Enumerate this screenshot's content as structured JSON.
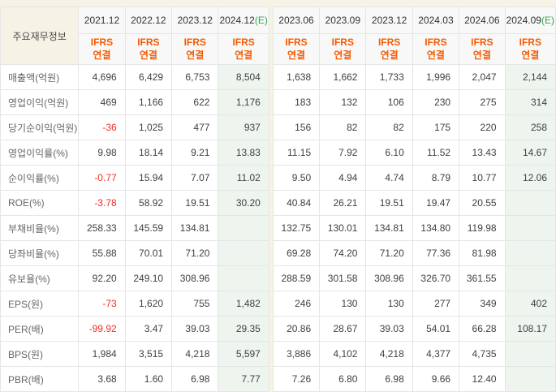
{
  "table": {
    "title": "주요재무정보",
    "ifrs_label": "IFRS",
    "consolidated_label": "연결",
    "estimate_suffix": "(E)",
    "annual_columns": [
      {
        "label": "2021.12",
        "estimate": false
      },
      {
        "label": "2022.12",
        "estimate": false
      },
      {
        "label": "2023.12",
        "estimate": false
      },
      {
        "label": "2024.12",
        "estimate": true
      }
    ],
    "quarterly_columns": [
      {
        "label": "2023.06",
        "estimate": false
      },
      {
        "label": "2023.09",
        "estimate": false
      },
      {
        "label": "2023.12",
        "estimate": false
      },
      {
        "label": "2024.03",
        "estimate": false
      },
      {
        "label": "2024.06",
        "estimate": false
      },
      {
        "label": "2024.09",
        "estimate": true
      }
    ],
    "rows": [
      {
        "label": "매출액(억원)",
        "group_start": false,
        "annual": [
          "4,696",
          "6,429",
          "6,753",
          "8,504"
        ],
        "quarterly": [
          "1,638",
          "1,662",
          "1,733",
          "1,996",
          "2,047",
          "2,144"
        ]
      },
      {
        "label": "영업이익(억원)",
        "group_start": false,
        "annual": [
          "469",
          "1,166",
          "622",
          "1,176"
        ],
        "quarterly": [
          "183",
          "132",
          "106",
          "230",
          "275",
          "314"
        ]
      },
      {
        "label": "당기순이익(억원)",
        "group_start": false,
        "annual": [
          "-36",
          "1,025",
          "477",
          "937"
        ],
        "quarterly": [
          "156",
          "82",
          "82",
          "175",
          "220",
          "258"
        ]
      },
      {
        "label": "영업이익률(%)",
        "group_start": true,
        "annual": [
          "9.98",
          "18.14",
          "9.21",
          "13.83"
        ],
        "quarterly": [
          "11.15",
          "7.92",
          "6.10",
          "11.52",
          "13.43",
          "14.67"
        ]
      },
      {
        "label": "순이익률(%)",
        "group_start": false,
        "annual": [
          "-0.77",
          "15.94",
          "7.07",
          "11.02"
        ],
        "quarterly": [
          "9.50",
          "4.94",
          "4.74",
          "8.79",
          "10.77",
          "12.06"
        ]
      },
      {
        "label": "ROE(%)",
        "group_start": false,
        "annual": [
          "-3.78",
          "58.92",
          "19.51",
          "30.20"
        ],
        "quarterly": [
          "40.84",
          "26.21",
          "19.51",
          "19.47",
          "20.55",
          ""
        ]
      },
      {
        "label": "부채비율(%)",
        "group_start": true,
        "annual": [
          "258.33",
          "145.59",
          "134.81",
          ""
        ],
        "quarterly": [
          "132.75",
          "130.01",
          "134.81",
          "134.80",
          "119.98",
          ""
        ]
      },
      {
        "label": "당좌비율(%)",
        "group_start": false,
        "annual": [
          "55.88",
          "70.01",
          "71.20",
          ""
        ],
        "quarterly": [
          "69.28",
          "74.20",
          "71.20",
          "77.36",
          "81.98",
          ""
        ]
      },
      {
        "label": "유보율(%)",
        "group_start": false,
        "annual": [
          "92.20",
          "249.10",
          "308.96",
          ""
        ],
        "quarterly": [
          "288.59",
          "301.58",
          "308.96",
          "326.70",
          "361.55",
          ""
        ]
      },
      {
        "label": "EPS(원)",
        "group_start": true,
        "annual": [
          "-73",
          "1,620",
          "755",
          "1,482"
        ],
        "quarterly": [
          "246",
          "130",
          "130",
          "277",
          "349",
          "402"
        ]
      },
      {
        "label": "PER(배)",
        "group_start": false,
        "annual": [
          "-99.92",
          "3.47",
          "39.03",
          "29.35"
        ],
        "quarterly": [
          "20.86",
          "28.67",
          "39.03",
          "54.01",
          "66.28",
          "108.17"
        ]
      },
      {
        "label": "BPS(원)",
        "group_start": false,
        "annual": [
          "1,984",
          "3,515",
          "4,218",
          "5,597"
        ],
        "quarterly": [
          "3,886",
          "4,102",
          "4,218",
          "4,377",
          "4,735",
          ""
        ]
      },
      {
        "label": "PBR(배)",
        "group_start": false,
        "annual": [
          "3.68",
          "1.60",
          "6.98",
          "7.77"
        ],
        "quarterly": [
          "7.26",
          "6.80",
          "6.98",
          "9.66",
          "12.40",
          ""
        ]
      }
    ]
  },
  "colors": {
    "background_beige": "#f6f2e5",
    "estimate_column_mint": "#eef5ef",
    "ifrs_orange": "#f55a00",
    "estimate_green": "#2faa4d",
    "negative_red": "#f42a2a"
  }
}
